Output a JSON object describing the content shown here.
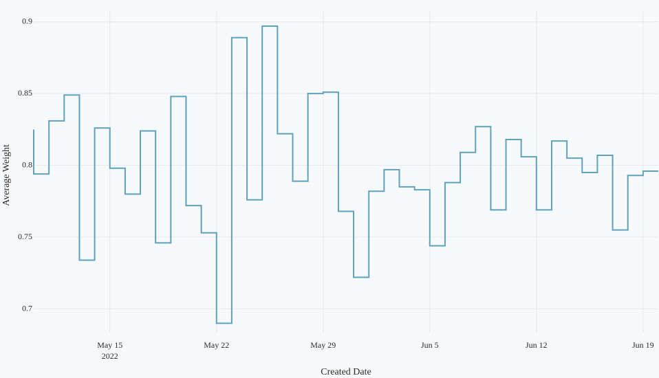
{
  "chart_data": {
    "type": "step",
    "line_shape": "vh",
    "x_label": "Created Date",
    "y_label": "Average Weight",
    "x": [
      "2022-05-10",
      "2022-05-11",
      "2022-05-12",
      "2022-05-13",
      "2022-05-14",
      "2022-05-15",
      "2022-05-16",
      "2022-05-17",
      "2022-05-18",
      "2022-05-19",
      "2022-05-20",
      "2022-05-21",
      "2022-05-22",
      "2022-05-23",
      "2022-05-24",
      "2022-05-25",
      "2022-05-26",
      "2022-05-27",
      "2022-05-28",
      "2022-05-29",
      "2022-05-30",
      "2022-05-31",
      "2022-06-01",
      "2022-06-02",
      "2022-06-03",
      "2022-06-04",
      "2022-06-05",
      "2022-06-06",
      "2022-06-07",
      "2022-06-08",
      "2022-06-09",
      "2022-06-10",
      "2022-06-11",
      "2022-06-12",
      "2022-06-13",
      "2022-06-14",
      "2022-06-15",
      "2022-06-16",
      "2022-06-17",
      "2022-06-18",
      "2022-06-19",
      "2022-06-20"
    ],
    "values": [
      0.825,
      0.794,
      0.831,
      0.849,
      0.734,
      0.826,
      0.798,
      0.78,
      0.824,
      0.746,
      0.848,
      0.772,
      0.753,
      0.69,
      0.889,
      0.776,
      0.897,
      0.822,
      0.789,
      0.85,
      0.851,
      0.768,
      0.722,
      0.782,
      0.797,
      0.785,
      0.783,
      0.744,
      0.788,
      0.809,
      0.827,
      0.769,
      0.818,
      0.806,
      0.769,
      0.817,
      0.805,
      0.795,
      0.807,
      0.755,
      0.793,
      0.796
    ],
    "color": "#5fa2bd",
    "xlim": [
      "2022-05-10",
      "2022-06-20"
    ],
    "xticks": [
      {
        "value": "2022-05-15",
        "label": "May 15\n2022"
      },
      {
        "value": "2022-05-22",
        "label": "May 22"
      },
      {
        "value": "2022-05-29",
        "label": "May 29"
      },
      {
        "value": "2022-06-05",
        "label": "Jun 5"
      },
      {
        "value": "2022-06-12",
        "label": "Jun 12"
      },
      {
        "value": "2022-06-19",
        "label": "Jun 19"
      }
    ],
    "ylim": [
      0.683,
      0.908
    ],
    "yticks": [
      0.7,
      0.75,
      0.8,
      0.85,
      0.9
    ],
    "grid": true
  }
}
